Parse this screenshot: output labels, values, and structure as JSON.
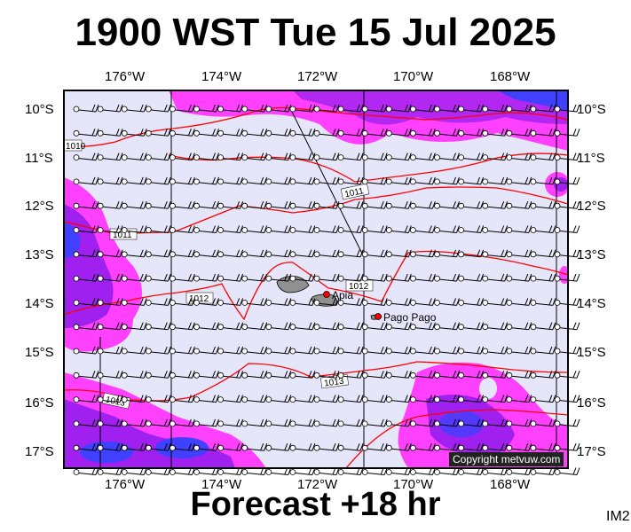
{
  "title": "1900 WST Tue 15 Jul 2025",
  "footer": "Forecast +18 hr",
  "tag": "IM2",
  "copyright": "Copyright metvuw.com",
  "lon_labels": [
    "176°W",
    "174°W",
    "172°W",
    "170°W",
    "168°W"
  ],
  "lat_labels": [
    "10°S",
    "11°S",
    "12°S",
    "13°S",
    "14°S",
    "15°S",
    "16°S",
    "17°S"
  ],
  "places": [
    {
      "name": "Apia"
    },
    {
      "name": "Pago Pago"
    }
  ],
  "isobars": [
    {
      "label": "1010"
    },
    {
      "label": "1011"
    },
    {
      "label": "1011"
    },
    {
      "label": "1012"
    },
    {
      "label": "1012"
    },
    {
      "label": "1013"
    },
    {
      "label": "1013"
    }
  ],
  "colors": {
    "background": "#e6e6fa",
    "rain_light": "#ff00ff",
    "rain_medium": "#a020f0",
    "rain_heavy": "#4040ff",
    "isobar": "#ff0000",
    "land": "#909090",
    "grid": "#000000"
  }
}
